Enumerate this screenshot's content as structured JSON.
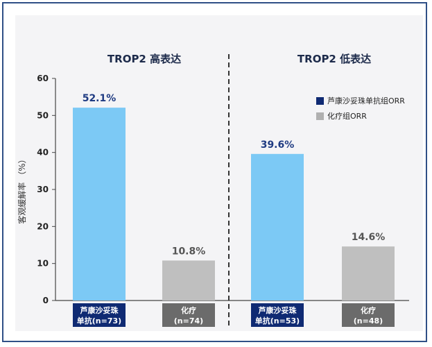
{
  "chart_data": {
    "type": "bar",
    "groups": [
      {
        "title": "TROP2 高表达",
        "bars": [
          {
            "label_line1": "芦康沙妥珠",
            "label_line2": "单抗(n=73)",
            "value": 52.1,
            "value_label": "52.1%",
            "series": "sac"
          },
          {
            "label_line1": "化疗",
            "label_line2": "(n=74)",
            "value": 10.8,
            "value_label": "10.8%",
            "series": "chemo"
          }
        ]
      },
      {
        "title": "TROP2 低表达",
        "bars": [
          {
            "label_line1": "芦康沙妥珠",
            "label_line2": "单抗(n=53)",
            "value": 39.6,
            "value_label": "39.6%",
            "series": "sac"
          },
          {
            "label_line1": "化疗",
            "label_line2": "(n=48)",
            "value": 14.6,
            "value_label": "14.6%",
            "series": "chemo"
          }
        ]
      }
    ],
    "ylabel": "客观缓解率 （%）",
    "ylim": [
      0,
      60
    ],
    "yticks": [
      0,
      10,
      20,
      30,
      40,
      50,
      60
    ],
    "legend": [
      {
        "name": "芦康沙妥珠单抗组ORR",
        "key": "sac"
      },
      {
        "name": "化疗组ORR",
        "key": "chemo"
      }
    ],
    "legend_position": "top-right",
    "colors": {
      "sac_bar": "#7cc9f5",
      "chemo_bar": "#bfbfbf",
      "sac_box": "#0f2a73",
      "chemo_box": "#6b6b6b",
      "value_sac": "#1f3b82",
      "value_chemo": "#555555",
      "legend_sac": "#0f2a73",
      "legend_chemo": "#b0b0b0"
    }
  }
}
